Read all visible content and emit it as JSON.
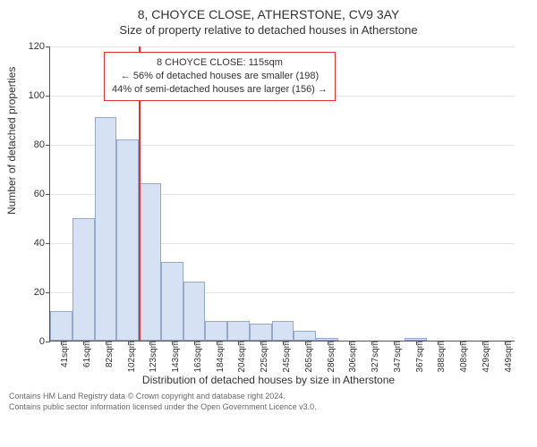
{
  "title_line1": "8, CHOYCE CLOSE, ATHERSTONE, CV9 3AY",
  "title_line2": "Size of property relative to detached houses in Atherstone",
  "y_axis_label": "Number of detached properties",
  "x_axis_label": "Distribution of detached houses by size in Atherstone",
  "attribution_line1": "Contains HM Land Registry data © Crown copyright and database right 2024.",
  "attribution_line2": "Contains public sector information licensed under the Open Government Licence v3.0.",
  "chart": {
    "type": "histogram",
    "background_color": "#ffffff",
    "grid_color": "#e5e5e5",
    "axis_color": "#555555",
    "bar_fill": "#d6e1f3",
    "bar_border": "#96a9c9",
    "marker_line_color": "#d33333",
    "ylim": [
      0,
      120
    ],
    "yticks": [
      0,
      20,
      40,
      60,
      80,
      100,
      120
    ],
    "x_categories": [
      "41sqm",
      "61sqm",
      "82sqm",
      "102sqm",
      "123sqm",
      "143sqm",
      "163sqm",
      "184sqm",
      "204sqm",
      "225sqm",
      "245sqm",
      "265sqm",
      "286sqm",
      "306sqm",
      "327sqm",
      "347sqm",
      "367sqm",
      "388sqm",
      "408sqm",
      "429sqm",
      "449sqm"
    ],
    "bar_values": [
      12,
      50,
      91,
      82,
      64,
      32,
      24,
      8,
      8,
      7,
      8,
      4,
      1,
      0,
      0,
      0,
      1,
      0,
      0,
      0,
      0
    ],
    "marker_between_index": [
      3,
      4
    ],
    "title_fontsize": 14,
    "subtitle_fontsize": 13,
    "label_fontsize": 12,
    "tick_fontsize": 11,
    "xtick_rotation_deg": -90,
    "annotation": {
      "line1": "8 CHOYCE CLOSE: 115sqm",
      "line2": "← 56% of detached houses are smaller (198)",
      "line3": "44% of semi-detached houses are larger (156) →",
      "border_color": "#d33333",
      "background": "#ffffff",
      "fontsize": 11
    }
  }
}
